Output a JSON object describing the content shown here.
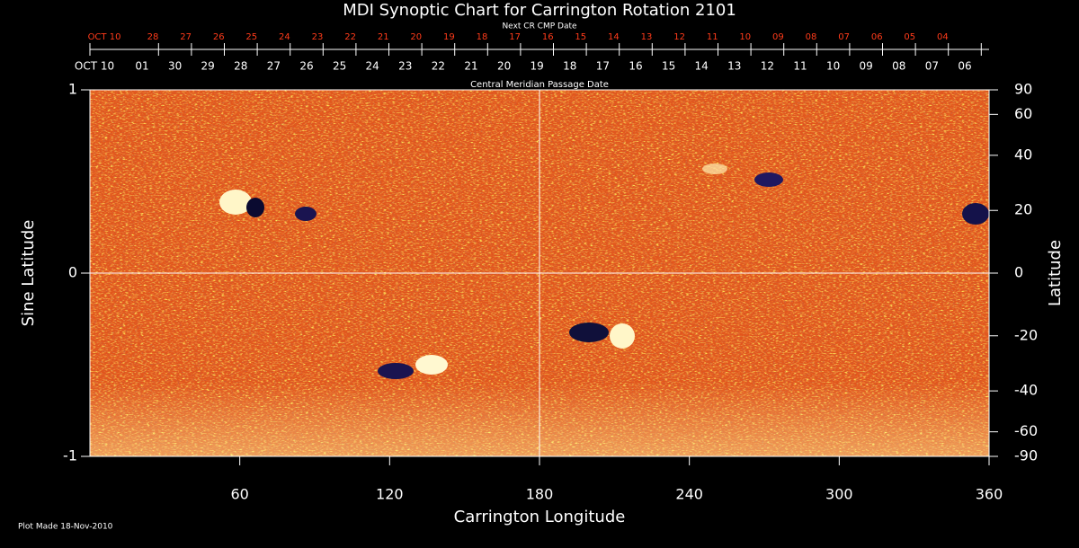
{
  "chart_data": {
    "type": "synoptic-map",
    "title": "MDI Synoptic Chart for Carrington Rotation 2101",
    "top_axis_title": "Next CR CMP Date",
    "top_categories": [
      "OCT 10",
      "28",
      "27",
      "26",
      "25",
      "24",
      "23",
      "22",
      "21",
      "20",
      "19",
      "18",
      "17",
      "16",
      "15",
      "14",
      "13",
      "12",
      "11",
      "10",
      "09",
      "08",
      "07",
      "06",
      "05",
      "04"
    ],
    "top_color": "#ff3b1a",
    "second_axis_title": "Central Meridian Passage Date",
    "categories": [
      "OCT 10",
      "01",
      "30",
      "29",
      "28",
      "27",
      "26",
      "25",
      "24",
      "23",
      "22",
      "21",
      "20",
      "19",
      "18",
      "17",
      "16",
      "15",
      "14",
      "13",
      "12",
      "11",
      "10",
      "09",
      "08",
      "07",
      "06"
    ],
    "xlabel": "Carrington Longitude",
    "ylabel": "Sine Latitude",
    "y2label": "Latitude",
    "xlim": [
      0,
      360
    ],
    "xticks": [
      60,
      120,
      180,
      240,
      300,
      360
    ],
    "ylim": [
      -1,
      1
    ],
    "yticks": [
      -1,
      0,
      1
    ],
    "y2lim": [
      -90,
      90
    ],
    "y2scale": "sine",
    "y2ticks": [
      90,
      60,
      40,
      20,
      0,
      -20,
      -40,
      -60,
      -90
    ],
    "center_lines": true,
    "footnote": "Plot Made 18-Nov-2010"
  }
}
